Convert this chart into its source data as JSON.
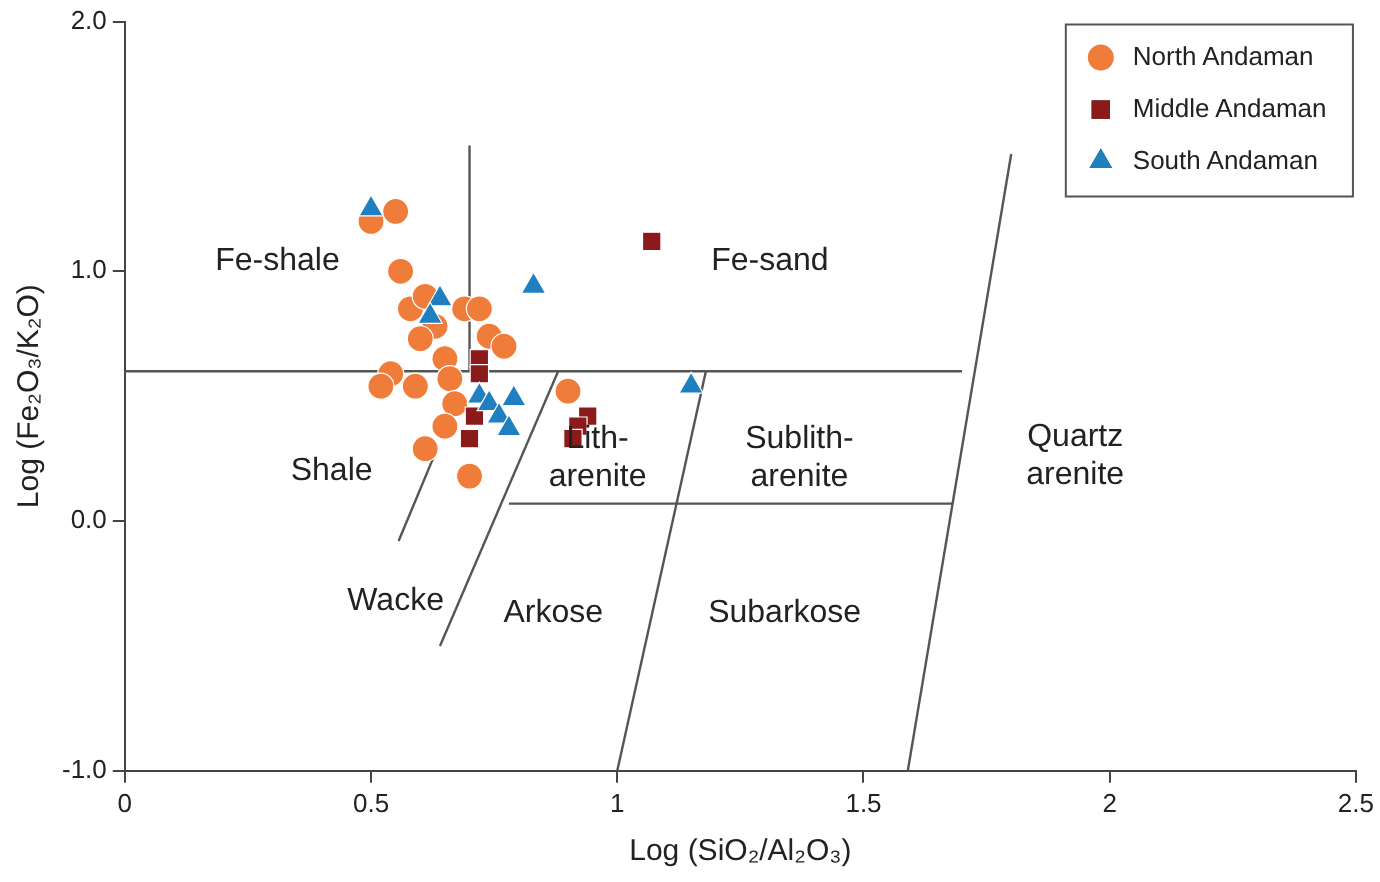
{
  "chart_data": {
    "type": "scatter",
    "xlabel": "Log (SiO₂/Al₂O₃)",
    "ylabel": "Log (Fe₂O₃/K₂O)",
    "xlim": [
      0,
      2.5
    ],
    "xticks": [
      0,
      0.5,
      1,
      1.5,
      2,
      2.5
    ],
    "ylim": [
      -1,
      2
    ],
    "yticks": [
      {
        "value": -1,
        "label": "-1.0"
      },
      {
        "value": 0,
        "label": "0.0"
      },
      {
        "value": 1,
        "label": "1.0"
      },
      {
        "value": 2,
        "label": "2.0"
      }
    ],
    "grid": false,
    "legend": "top right",
    "series": [
      {
        "name": "North Andaman",
        "color": "#f07c3a",
        "marker": "circle",
        "x": [
          0.5,
          0.55,
          0.56,
          0.58,
          0.61,
          0.63,
          0.6,
          0.69,
          0.72,
          0.74,
          0.77,
          0.65,
          0.54,
          0.52,
          0.59,
          0.66,
          0.67,
          0.65,
          0.61,
          0.7,
          0.9
        ],
        "values": [
          1.2,
          1.24,
          1.0,
          0.85,
          0.9,
          0.78,
          0.73,
          0.85,
          0.85,
          0.74,
          0.7,
          0.65,
          0.59,
          0.54,
          0.54,
          0.57,
          0.47,
          0.38,
          0.29,
          0.18,
          0.52
        ]
      },
      {
        "name": "Middle Andaman",
        "color": "#8b1a1a",
        "marker": "square",
        "x": [
          1.07,
          0.72,
          0.72,
          0.71,
          0.7,
          0.94,
          0.92,
          0.91
        ],
        "values": [
          1.12,
          0.65,
          0.59,
          0.42,
          0.33,
          0.42,
          0.38,
          0.33
        ]
      },
      {
        "name": "South Andaman",
        "color": "#1f7fc0",
        "marker": "triangle",
        "x": [
          0.5,
          0.64,
          0.62,
          0.83,
          1.15,
          0.72,
          0.74,
          0.79,
          0.76,
          0.78
        ],
        "values": [
          1.25,
          0.89,
          0.82,
          0.94,
          0.54,
          0.5,
          0.47,
          0.49,
          0.42,
          0.37
        ]
      },
      {
        "type": "line",
        "color": "#555555",
        "marker": "none",
        "x": [
          0,
          1.7
        ],
        "values": [
          0.6,
          0.6
        ]
      },
      {
        "type": "line",
        "color": "#555555",
        "marker": "none",
        "x": [
          0.7,
          0.7
        ],
        "values": [
          1.5,
          0.6
        ]
      },
      {
        "type": "line",
        "color": "#555555",
        "marker": "none",
        "x": [
          0.556,
          0.63
        ],
        "values": [
          -0.08,
          0.27
        ]
      },
      {
        "type": "line",
        "color": "#555555",
        "marker": "none",
        "x": [
          0.64,
          0.88
        ],
        "values": [
          -0.5,
          0.6
        ]
      },
      {
        "type": "line",
        "color": "#555555",
        "marker": "none",
        "x": [
          1.0,
          1.18
        ],
        "values": [
          -1.0,
          0.6
        ]
      },
      {
        "type": "line",
        "color": "#555555",
        "marker": "none",
        "x": [
          1.59,
          1.8
        ],
        "values": [
          -1.0,
          1.47
        ]
      },
      {
        "type": "line",
        "color": "#555555",
        "marker": "none",
        "x": [
          0.78,
          1.68
        ],
        "values": [
          0.07,
          0.07
        ]
      }
    ],
    "annotations": [
      "Fe-shale",
      "Fe-sand",
      "Shale",
      "Lith-\narenite",
      "Sublith-\narenite",
      "Quartz\narenite",
      "Wacke",
      "Arkose",
      "Subarkose"
    ]
  }
}
